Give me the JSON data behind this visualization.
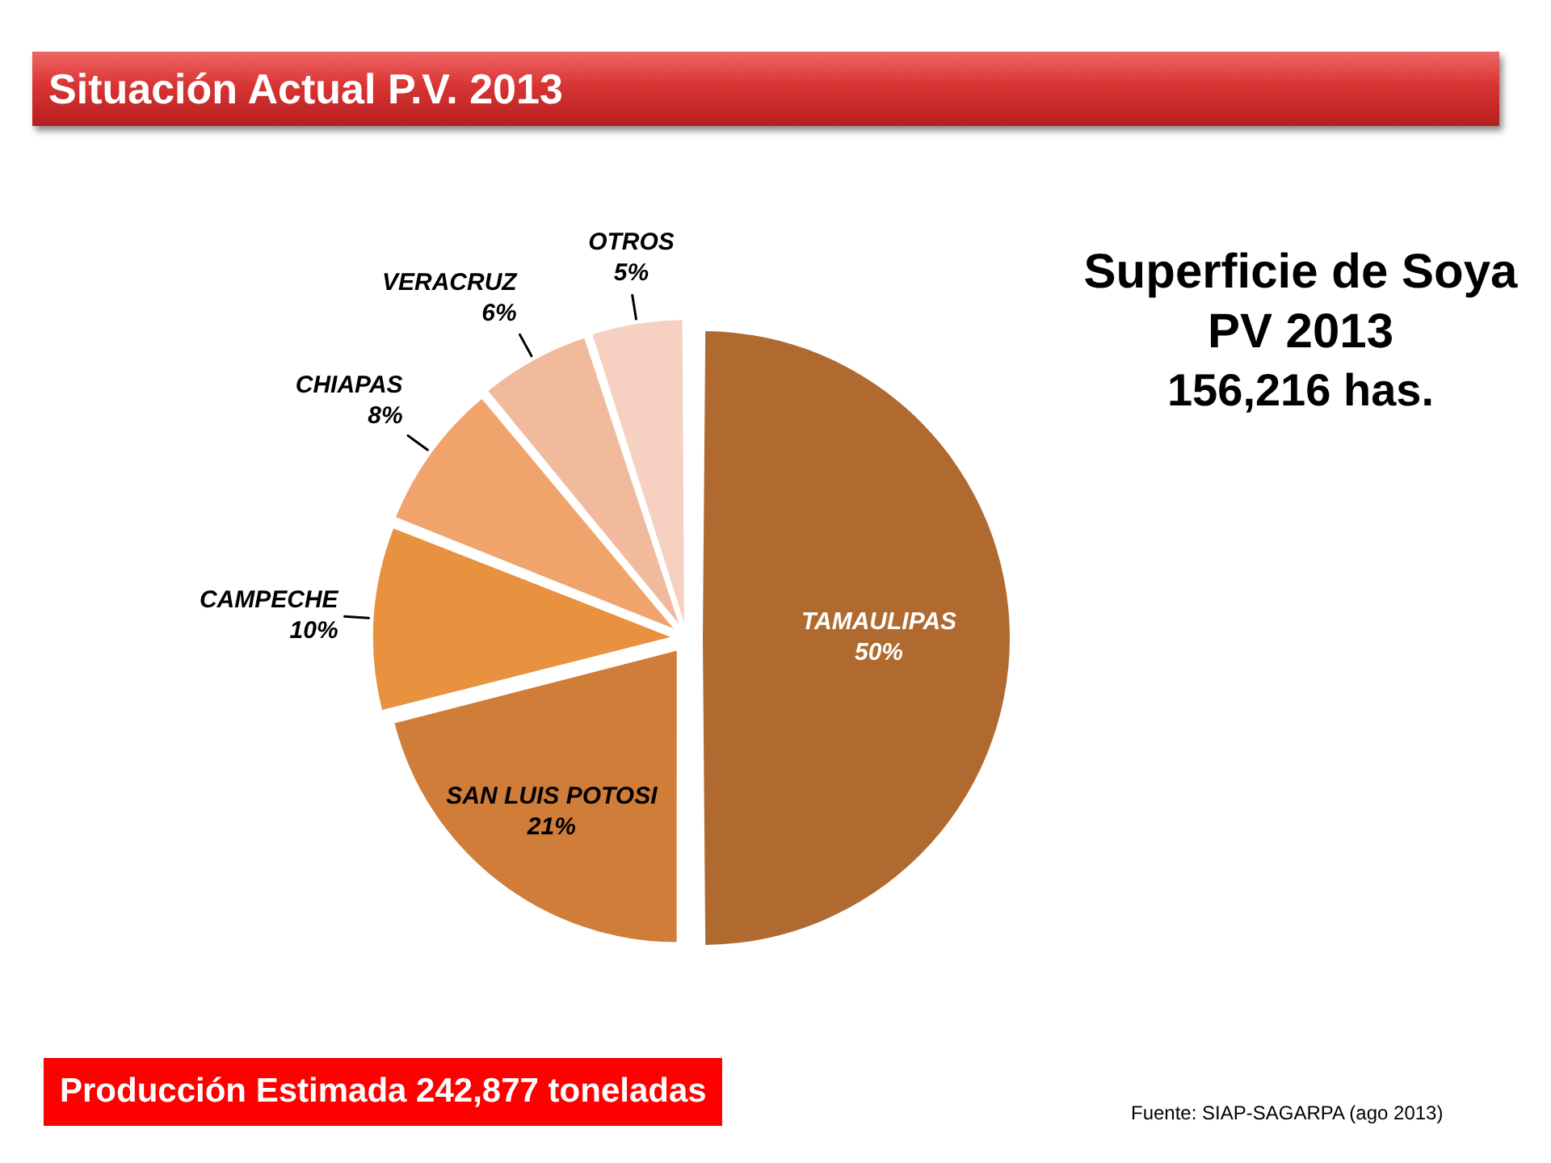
{
  "chart_data": {
    "type": "pie",
    "title": "Situación Actual P.V. 2013",
    "subtitle": "Superficie de Soya PV 2013",
    "categories": [
      "TAMAULIPAS",
      "SAN LUIS POTOSI",
      "CAMPECHE",
      "CHIAPAS",
      "VERACRUZ",
      "OTROS"
    ],
    "values": [
      50,
      21,
      10,
      8,
      6,
      5
    ],
    "colors": [
      "#b06a30",
      "#cf7d38",
      "#e8913f",
      "#f0a36a",
      "#f2ba9c",
      "#f6d0c0"
    ],
    "value_labels": [
      "50%",
      "21%",
      "10%",
      "8%",
      "6%",
      "5%"
    ],
    "annotations": [
      "156,216 has.",
      "Producción Estimada 242,877 toneladas",
      "Fuente: SIAP-SAGARPA (ago 2013)"
    ]
  }
}
